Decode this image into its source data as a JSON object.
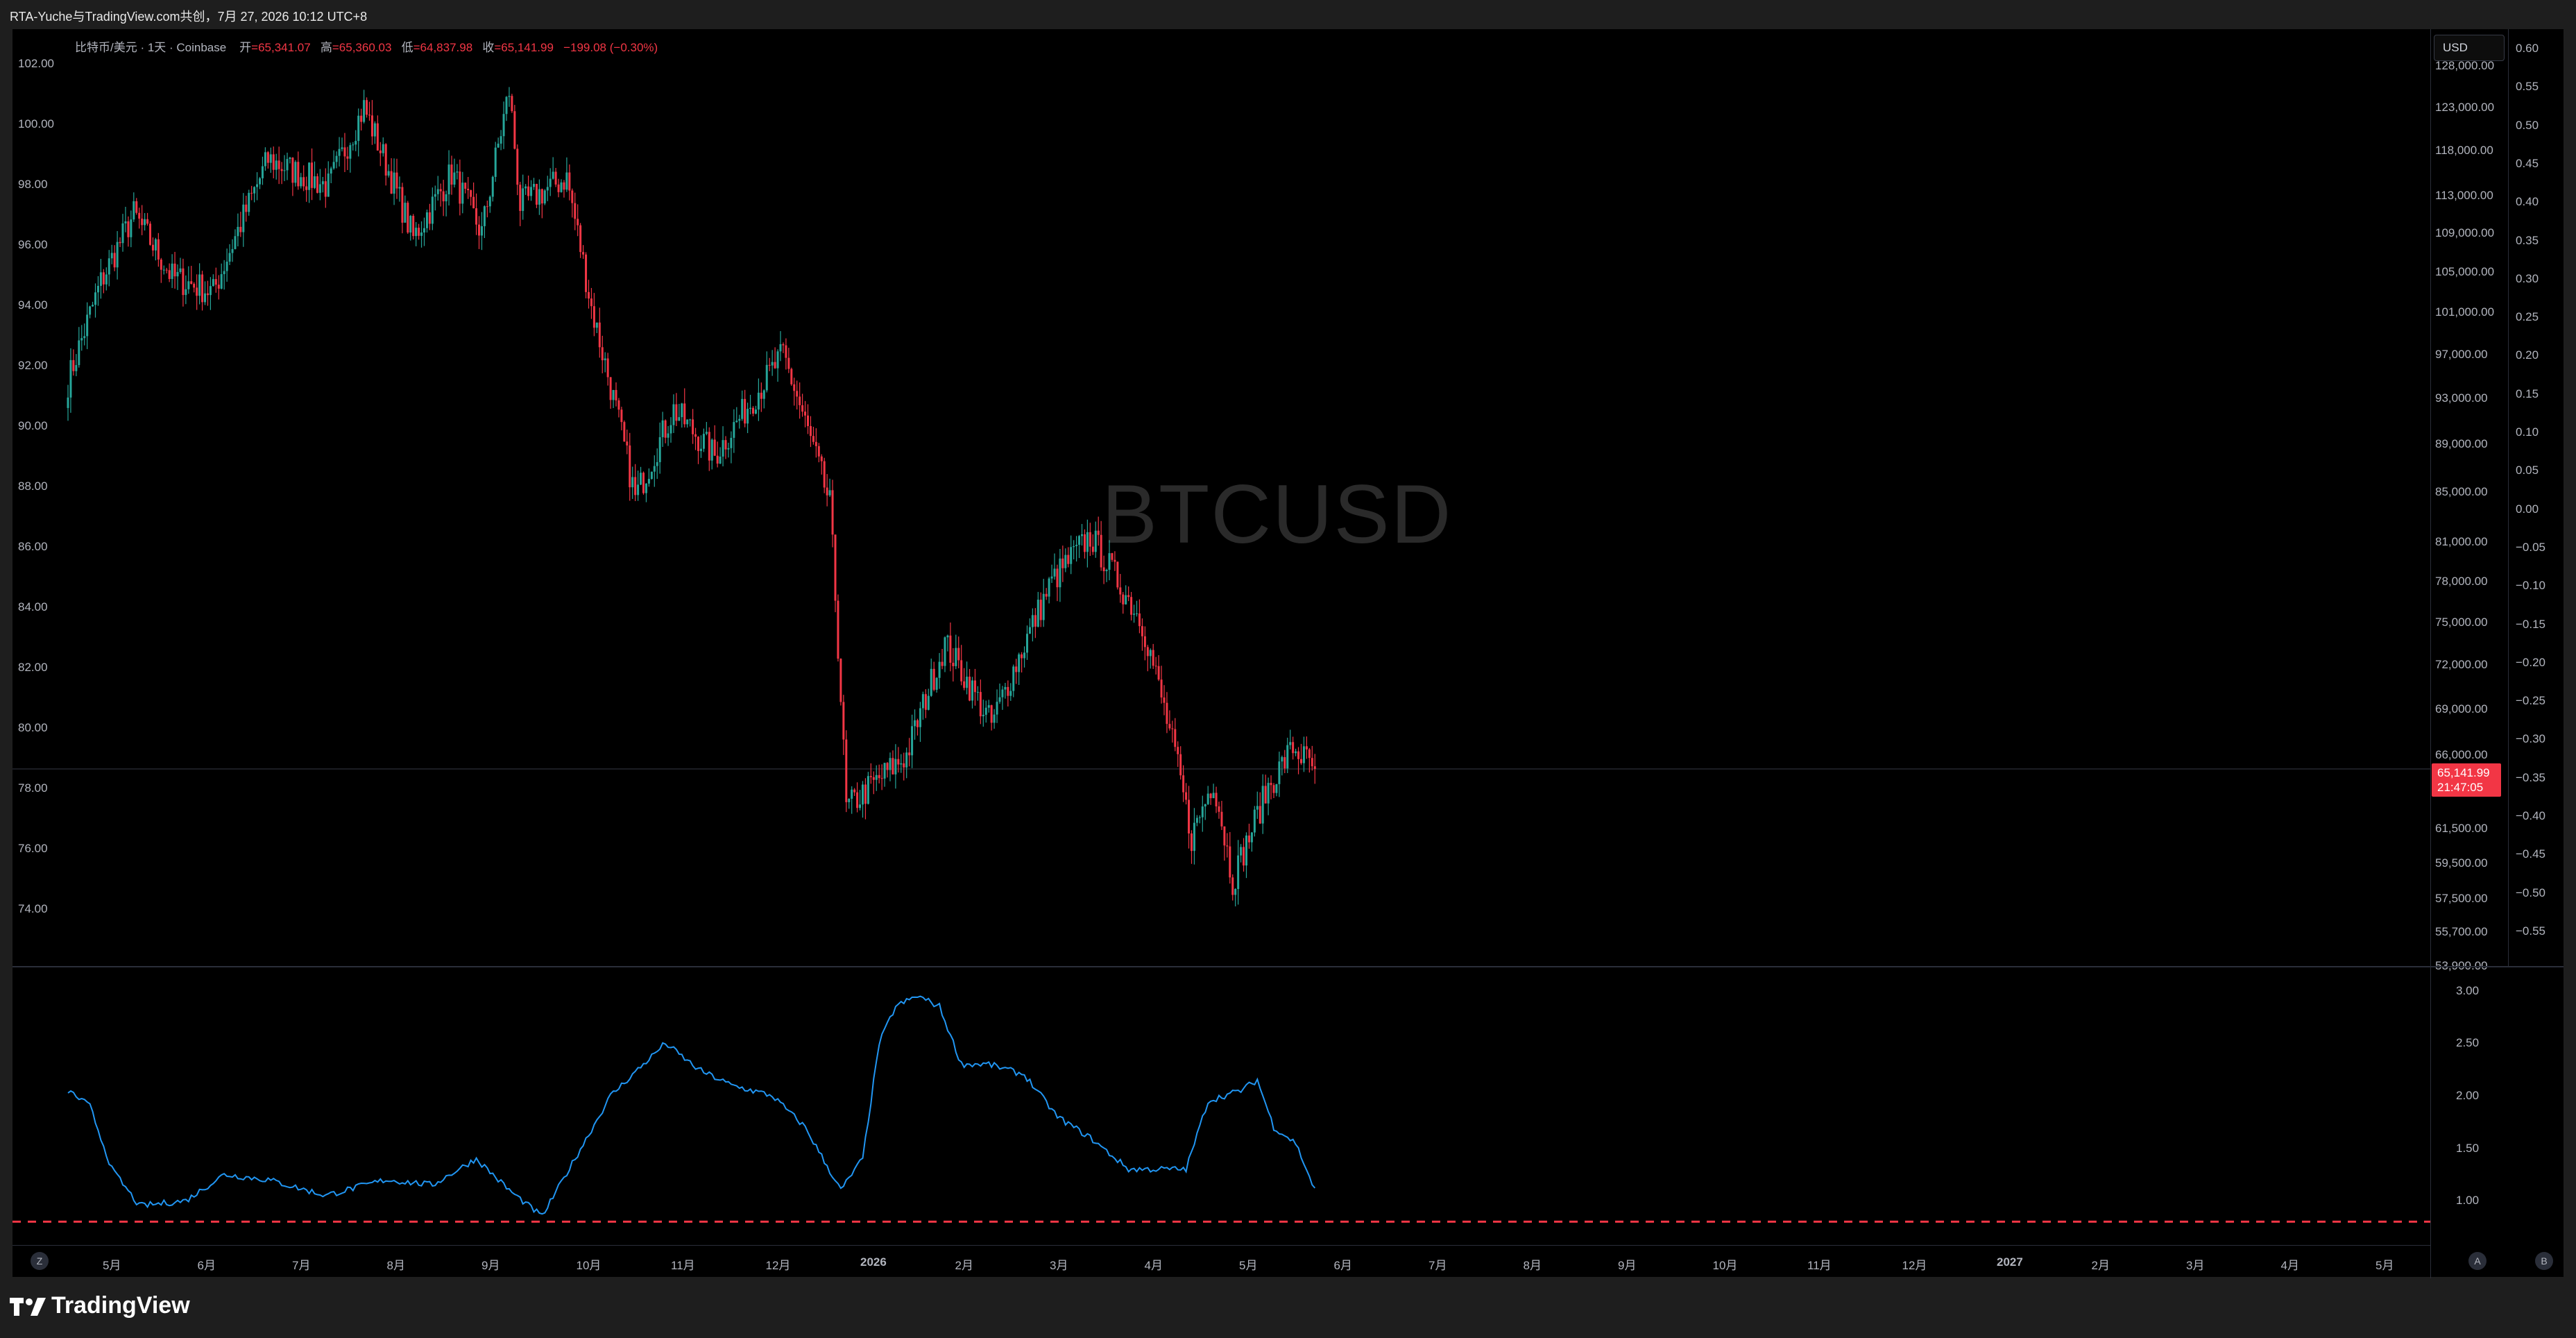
{
  "title_bar": {
    "text": "RTA-Yuche与TradingView.com共创，7月 27, 2026 10:12 UTC+8"
  },
  "legend": {
    "symbol": "比特币/美元 · 1天 · Coinbase",
    "open_label": "开",
    "open": "=65,341.07",
    "high_label": "高",
    "high": "=65,360.03",
    "low_label": "低",
    "low": "=64,837.98",
    "close_label": "收",
    "close": "=65,141.99",
    "change": "−199.08 (−0.30%)"
  },
  "watermark": "BTCUSD",
  "currency_button": "USD",
  "price_tag": {
    "price": "65,141.99",
    "countdown": "21:47:05"
  },
  "left_axis_ticks": [
    "102.00",
    "100.00",
    "98.00",
    "96.00",
    "94.00",
    "92.00",
    "90.00",
    "88.00",
    "86.00",
    "84.00",
    "82.00",
    "80.00",
    "78.00",
    "76.00",
    "74.00"
  ],
  "right_axis_ticks": [
    "128,000.00",
    "123,000.00",
    "118,000.00",
    "113,000.00",
    "109,000.00",
    "105,000.00",
    "101,000.00",
    "97,000.00",
    "93,000.00",
    "89,000.00",
    "85,000.00",
    "81,000.00",
    "78,000.00",
    "75,000.00",
    "72,000.00",
    "69,000.00",
    "66,000.00",
    "61,500.00",
    "59,500.00",
    "57,500.00",
    "55,700.00",
    "53,900.00"
  ],
  "far_right_axis_ticks": [
    "0.60",
    "0.55",
    "0.50",
    "0.45",
    "0.40",
    "0.35",
    "0.30",
    "0.25",
    "0.20",
    "0.15",
    "0.10",
    "0.05",
    "0.00",
    "−0.05",
    "−0.10",
    "−0.15",
    "−0.20",
    "−0.25",
    "−0.30",
    "−0.35",
    "−0.40",
    "−0.45",
    "−0.50",
    "−0.55"
  ],
  "lower_axis_ticks": [
    "3.00",
    "2.50",
    "2.00",
    "1.50",
    "1.00"
  ],
  "time_axis": [
    "5月",
    "6月",
    "7月",
    "8月",
    "9月",
    "10月",
    "11月",
    "12月",
    "2026",
    "2月",
    "3月",
    "4月",
    "5月",
    "6月",
    "7月",
    "8月",
    "9月",
    "10月",
    "11月",
    "12月",
    "2027",
    "2月",
    "3月",
    "4月",
    "5月"
  ],
  "bottom_buttons": {
    "left": "Z",
    "a": "A",
    "b": "B"
  },
  "brand": "TradingView",
  "colors": {
    "up": "#26a69a",
    "down": "#f23645",
    "line": "#2196f3",
    "bg": "#000000",
    "dashed": "#f23645"
  },
  "chart_data": [
    {
      "type": "candlestick",
      "title": "比特币/美元 · 1天 · Coinbase",
      "xlabel": "",
      "ylabel": "",
      "ylim": [
        53900,
        130000
      ],
      "close_path": [
        [
          "2025-04-28",
          94500
        ],
        [
          "2025-05-10",
          104000
        ],
        [
          "2025-05-22",
          111000
        ],
        [
          "2025-06-05",
          104500
        ],
        [
          "2025-06-20",
          103000
        ],
        [
          "2025-07-10",
          117000
        ],
        [
          "2025-08-01",
          114000
        ],
        [
          "2025-08-14",
          123000
        ],
        [
          "2025-09-01",
          108500
        ],
        [
          "2025-09-15",
          115500
        ],
        [
          "2025-09-26",
          109000
        ],
        [
          "2025-10-06",
          125000
        ],
        [
          "2025-10-10",
          112000
        ],
        [
          "2025-10-27",
          115000
        ],
        [
          "2025-11-05",
          101500
        ],
        [
          "2025-11-21",
          84500
        ],
        [
          "2025-12-05",
          92000
        ],
        [
          "2025-12-20",
          88000
        ],
        [
          "2026-01-14",
          97000
        ],
        [
          "2026-01-31",
          84000
        ],
        [
          "2026-02-06",
          62700
        ],
        [
          "2026-02-28",
          66000
        ],
        [
          "2026-03-14",
          73500
        ],
        [
          "2026-03-31",
          68000
        ],
        [
          "2026-04-22",
          78000
        ],
        [
          "2026-05-06",
          81500
        ],
        [
          "2026-05-25",
          75000
        ],
        [
          "2026-06-06",
          66000
        ],
        [
          "2026-06-12",
          61000
        ],
        [
          "2026-06-20",
          64500
        ],
        [
          "2026-06-27",
          58500
        ],
        [
          "2026-07-10",
          64000
        ],
        [
          "2026-07-19",
          66500
        ],
        [
          "2026-07-27",
          65141.99
        ]
      ]
    },
    {
      "type": "line",
      "title": "",
      "ylim": [
        0.8,
        3.1
      ],
      "threshold": 0.8,
      "points": [
        [
          "2025-04-28",
          2.05
        ],
        [
          "2025-05-06",
          1.9
        ],
        [
          "2025-05-14",
          1.3
        ],
        [
          "2025-05-24",
          0.95
        ],
        [
          "2025-06-10",
          1.0
        ],
        [
          "2025-06-24",
          1.25
        ],
        [
          "2025-07-10",
          1.2
        ],
        [
          "2025-07-31",
          1.05
        ],
        [
          "2025-08-22",
          1.2
        ],
        [
          "2025-09-08",
          1.15
        ],
        [
          "2025-09-24",
          1.4
        ],
        [
          "2025-10-06",
          1.1
        ],
        [
          "2025-10-18",
          0.85
        ],
        [
          "2025-10-30",
          1.4
        ],
        [
          "2025-11-12",
          2.0
        ],
        [
          "2025-11-26",
          2.35
        ],
        [
          "2025-12-02",
          2.5
        ],
        [
          "2025-12-14",
          2.25
        ],
        [
          "2025-12-26",
          2.1
        ],
        [
          "2026-01-10",
          2.0
        ],
        [
          "2026-01-22",
          1.7
        ],
        [
          "2026-02-04",
          1.1
        ],
        [
          "2026-02-12",
          1.4
        ],
        [
          "2026-02-18",
          2.5
        ],
        [
          "2026-02-24",
          2.85
        ],
        [
          "2026-03-04",
          2.95
        ],
        [
          "2026-03-12",
          2.85
        ],
        [
          "2026-03-20",
          2.3
        ],
        [
          "2026-03-30",
          2.3
        ],
        [
          "2026-04-12",
          2.2
        ],
        [
          "2026-04-24",
          1.8
        ],
        [
          "2026-05-06",
          1.6
        ],
        [
          "2026-05-20",
          1.3
        ],
        [
          "2026-06-10",
          1.3
        ],
        [
          "2026-06-18",
          1.95
        ],
        [
          "2026-06-30",
          2.05
        ],
        [
          "2026-07-06",
          2.15
        ],
        [
          "2026-07-12",
          1.7
        ],
        [
          "2026-07-20",
          1.55
        ],
        [
          "2026-07-27",
          1.1
        ]
      ]
    }
  ]
}
